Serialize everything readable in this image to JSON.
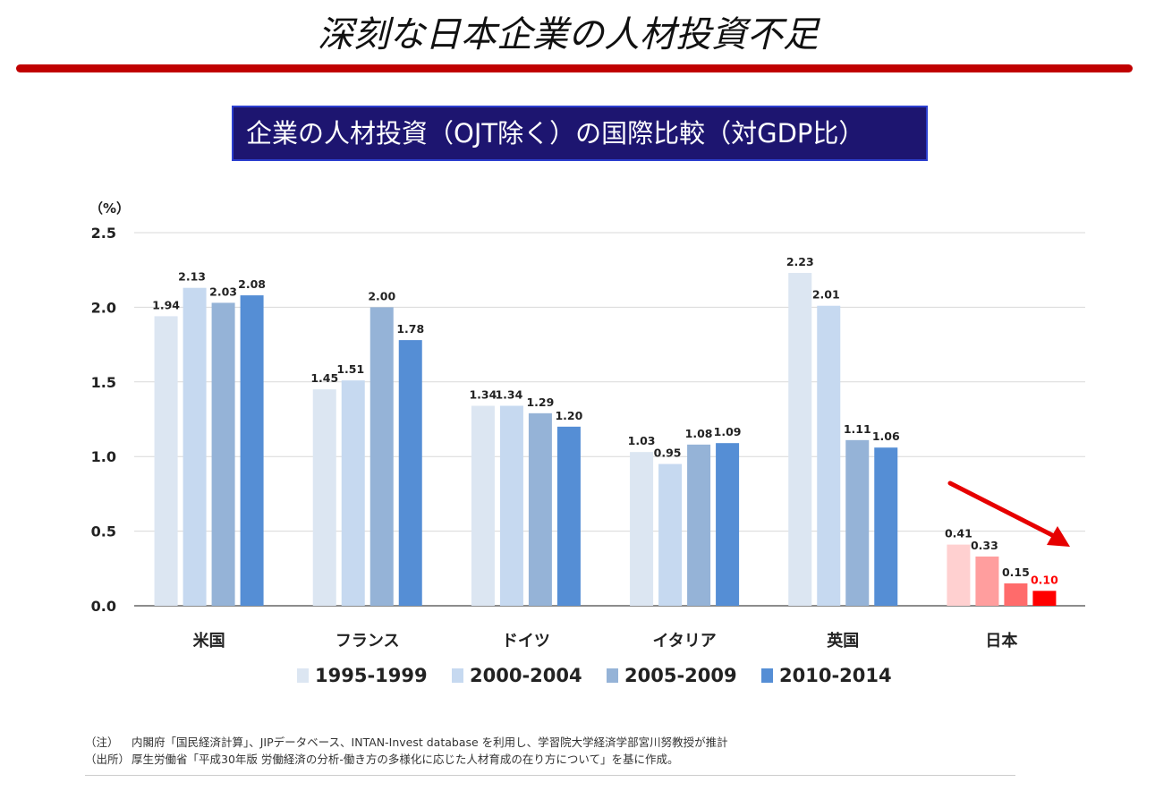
{
  "header": {
    "title": "深刻な日本企業の人材投資不足",
    "subtitle": "企業の人材投資（OJT除く）の国際比較（対GDP比）"
  },
  "chart_data": {
    "type": "bar",
    "title": "企業の人材投資（OJT除く）の国際比較（対GDP比）",
    "ylabel": "（%）",
    "xlabel": "",
    "ylim": [
      0,
      2.5
    ],
    "yticks": [
      "0.0",
      "0.5",
      "1.0",
      "1.5",
      "2.0",
      "2.5"
    ],
    "grid": true,
    "legend": "bottom",
    "categories": [
      "米国",
      "フランス",
      "ドイツ",
      "イタリア",
      "英国",
      "日本"
    ],
    "series": [
      {
        "name": "1995-1999",
        "values": [
          1.94,
          1.45,
          1.34,
          1.03,
          2.23,
          0.41
        ],
        "labels": [
          "1.94",
          "1.45",
          "1.34",
          "1.03",
          "2.23",
          "0.41"
        ],
        "color": "#dce6f2"
      },
      {
        "name": "2000-2004",
        "values": [
          2.13,
          1.51,
          1.34,
          0.95,
          2.01,
          0.33
        ],
        "labels": [
          "2.13",
          "1.51",
          "1.34",
          "0.95",
          "2.01",
          "0.33"
        ],
        "color": "#c6d9f0"
      },
      {
        "name": "2005-2009",
        "values": [
          2.03,
          2.0,
          1.29,
          1.08,
          1.11,
          0.15
        ],
        "labels": [
          "2.03",
          "2.00",
          "1.29",
          "1.08",
          "1.11",
          "0.15"
        ],
        "color": "#95b3d7"
      },
      {
        "name": "2010-2014",
        "values": [
          2.08,
          1.78,
          1.2,
          1.09,
          1.06,
          0.1
        ],
        "labels": [
          "2.08",
          "1.78",
          "1.20",
          "1.09",
          "1.06",
          "0.10"
        ],
        "color": "#558ed5"
      }
    ],
    "highlight": {
      "category": "日本",
      "colors": [
        "#ffd0d0",
        "#ff9e9e",
        "#ff6b6b",
        "#ff0000"
      ],
      "last_label_color": "#ff0000",
      "trend_arrow_color": "#e60000"
    }
  },
  "notes": [
    {
      "key": "（注）",
      "text": "内閣府「国民経済計算」、JIPデータベース、INTAN-Invest database を利用し、学習院大学経済学部宮川努教授が推計"
    },
    {
      "key": "（出所）",
      "text": "厚生労働省「平成30年版 労働経済の分析-働き方の多様化に応じた人材育成の在り方について」を基に作成。"
    }
  ]
}
